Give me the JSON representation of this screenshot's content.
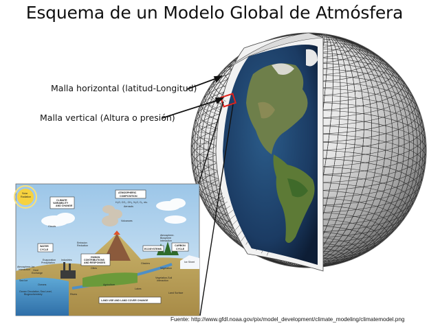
{
  "title": "Esquema de un Modelo Global de Atmósfera",
  "labels": {
    "horizontal": "Malla horizontal (latitud-Longitud)",
    "vertical": "Malla vertical (Altura o presión)"
  },
  "source": "Fuente: http://www.gfdl.noaa.gov/pix/model_development/climate_modeling/climatemodel.png",
  "inset": {
    "solar": [
      "Solar",
      "Radiation"
    ],
    "climate_box": [
      "CLIMATE",
      "VARIABILITY",
      "AND CHANGE"
    ],
    "atm_box": [
      "ATMOSPHERIC",
      "COMPOSITION"
    ],
    "atm_formula": "H₂O, CO₂, CH₄, N₂O, O₃, etc.",
    "aerosols": "Aerosols",
    "clouds": "Clouds",
    "volcanoes": "Volcanoes",
    "water_box": [
      "WATER",
      "CYCLE"
    ],
    "human_box": [
      "HUMAN",
      "CONTRIBUTIONS",
      "AND RESPONSES"
    ],
    "eco_box": "ECOSYSTEMS",
    "carbon_box": [
      "CARBON",
      "CYCLE"
    ],
    "industries": "Industries",
    "cities": "Cities",
    "agriculture": "Agriculture",
    "oceans": "Oceans",
    "rivers": "Rivers",
    "lakes": "Lakes",
    "glaciers": "Glaciers",
    "vegetation": "Vegetation",
    "ice_sheet": "Ice Sheet",
    "sea_ice": "Sea Ice",
    "land_surface": "Land Surface",
    "land_use_box": "LAND USE AND LAND COVER CHANGE",
    "evaporation": [
      "Evaporation",
      "Precipitation"
    ],
    "heat": [
      "Heat",
      "Exchange"
    ],
    "atm_exchange": [
      "Atmosphere-Ice",
      "Interaction"
    ],
    "ocean_circulation": [
      "Ocean Circulation, Sea Level,",
      "Biogeochemistry"
    ],
    "emission": [
      "Emission",
      "Reduction"
    ],
    "atm_bio": [
      "Atmosphere-",
      "Biosphere",
      "Interaction"
    ],
    "vegetation_soil": [
      "Vegetation-Soil",
      "Interaction"
    ]
  }
}
